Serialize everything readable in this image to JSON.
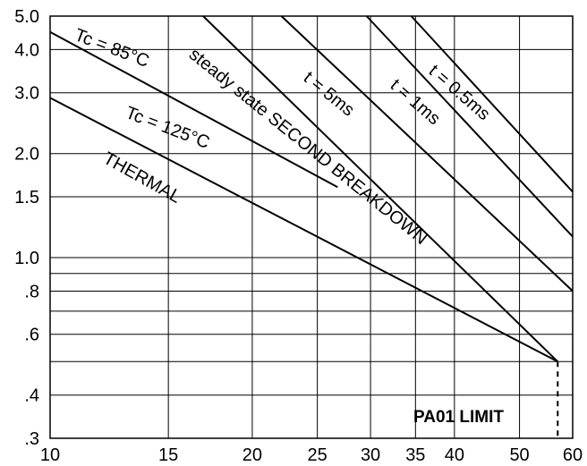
{
  "chart_data": {
    "type": "line",
    "x_scale": "log",
    "y_scale": "log",
    "xlim": [
      10,
      60
    ],
    "ylim": [
      0.3,
      5.0
    ],
    "grid": true,
    "x_ticks": [
      10,
      15,
      20,
      25,
      30,
      35,
      40,
      50,
      60
    ],
    "x_tick_labels": [
      "10",
      "15",
      "20",
      "25",
      "30",
      "35",
      "40",
      "50",
      "60"
    ],
    "y_ticks": [
      0.3,
      0.4,
      0.6,
      0.8,
      1.0,
      1.5,
      2.0,
      3.0,
      4.0,
      5.0
    ],
    "y_tick_labels": [
      ".3",
      ".4",
      ".6",
      ".8",
      "1.0",
      "1.5",
      "2.0",
      "3.0",
      "4.0",
      "5.0"
    ],
    "y_minor_grid": [
      0.5,
      0.7,
      0.9
    ],
    "series": [
      {
        "name": "Tc = 85°C",
        "x": [
          10,
          26.8
        ],
        "y": [
          4.5,
          1.6
        ]
      },
      {
        "name": "Tc = 125°C",
        "x": [
          10,
          57
        ],
        "y": [
          2.9,
          0.5
        ]
      },
      {
        "name": "steady state SECOND BREAKDOWN",
        "x": [
          16.9,
          57
        ],
        "y": [
          5.0,
          0.5
        ]
      },
      {
        "name": "t = 5ms",
        "x": [
          22.1,
          60
        ],
        "y": [
          5.0,
          0.8
        ]
      },
      {
        "name": "t = 1ms",
        "x": [
          29.6,
          60
        ],
        "y": [
          5.0,
          1.15
        ]
      },
      {
        "name": "t = 0.5ms",
        "x": [
          34.5,
          60
        ],
        "y": [
          5.0,
          1.55
        ]
      }
    ],
    "annotations": [
      {
        "text": "THERMAL"
      },
      {
        "text": "PA01 LIMIT",
        "x": 57
      }
    ]
  }
}
